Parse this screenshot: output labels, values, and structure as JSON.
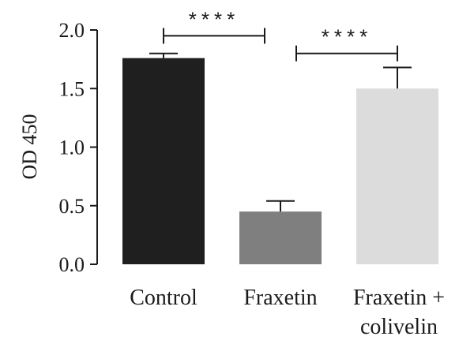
{
  "chart_data": {
    "type": "bar",
    "title": "",
    "xlabel": "",
    "ylabel": "OD 450",
    "ylim": [
      0,
      2.0
    ],
    "yticks": [
      0.0,
      0.5,
      1.0,
      1.5,
      2.0
    ],
    "ytick_labels": [
      "0.0",
      "0.5",
      "1.0",
      "1.5",
      "2.0"
    ],
    "categories": [
      {
        "lines": [
          "Control"
        ]
      },
      {
        "lines": [
          "Fraxetin"
        ]
      },
      {
        "lines": [
          "Fraxetin +",
          "colivelin"
        ]
      }
    ],
    "values": [
      1.76,
      0.45,
      1.5
    ],
    "errors": [
      0.04,
      0.09,
      0.18
    ],
    "colors": [
      "#1f1f1f",
      "#7f7f7f",
      "#dcdcdc"
    ],
    "grid": false,
    "legend": "none",
    "significance": [
      {
        "from": 0,
        "to": 1,
        "label": "****",
        "y": 1.95
      },
      {
        "from": 1,
        "to": 2,
        "label": "****",
        "y": 1.8
      }
    ]
  }
}
